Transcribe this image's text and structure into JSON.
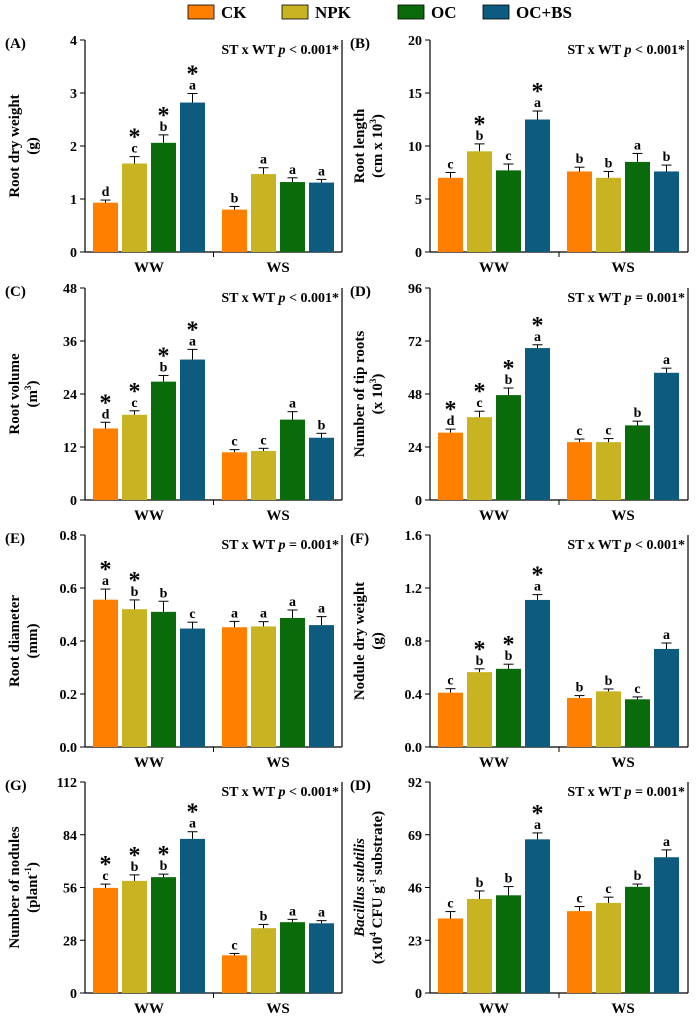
{
  "legend": {
    "items": [
      {
        "label": "CK",
        "color": "#ff8000"
      },
      {
        "label": "NPK",
        "color": "#c8b422"
      },
      {
        "label": "OC",
        "color": "#0a6b0a"
      },
      {
        "label": "OC+BS",
        "color": "#0d5c80"
      }
    ]
  },
  "chart_data": [
    {
      "panel": "(A)",
      "type": "bar",
      "stat": [
        "ST x WT ",
        "p",
        " < 0.001*"
      ],
      "ylabel": [
        "Root dry weight",
        "(g)"
      ],
      "yticks": [
        "0",
        "1",
        "2",
        "3",
        "4"
      ],
      "ylim": [
        0,
        4
      ],
      "categories": [
        "WW",
        "WS"
      ],
      "series": [
        {
          "name": "CK",
          "values": [
            0.93,
            0.8
          ],
          "errors": [
            0.05,
            0.06
          ],
          "letters": [
            "d",
            "b"
          ],
          "sig": [
            false,
            false
          ]
        },
        {
          "name": "NPK",
          "values": [
            1.67,
            1.47
          ],
          "errors": [
            0.13,
            0.12
          ],
          "letters": [
            "c",
            "a"
          ],
          "sig": [
            true,
            false
          ]
        },
        {
          "name": "OC",
          "values": [
            2.06,
            1.32
          ],
          "errors": [
            0.15,
            0.08
          ],
          "letters": [
            "b",
            "a"
          ],
          "sig": [
            true,
            false
          ]
        },
        {
          "name": "OC+BS",
          "values": [
            2.82,
            1.31
          ],
          "errors": [
            0.17,
            0.06
          ],
          "letters": [
            "a",
            "a"
          ],
          "sig": [
            true,
            false
          ]
        }
      ]
    },
    {
      "panel": "(B)",
      "type": "bar",
      "stat": [
        "ST x WT ",
        "p",
        " < 0.001*"
      ],
      "ylabel": [
        "Root length",
        "(cm x 10",
        "3",
        ")"
      ],
      "yticks": [
        "0",
        "5",
        "10",
        "15",
        "20"
      ],
      "ylim": [
        0,
        20
      ],
      "categories": [
        "WW",
        "WS"
      ],
      "series": [
        {
          "name": "CK",
          "values": [
            7.0,
            7.6
          ],
          "errors": [
            0.5,
            0.4
          ],
          "letters": [
            "c",
            "b"
          ],
          "sig": [
            false,
            false
          ]
        },
        {
          "name": "NPK",
          "values": [
            9.5,
            7.0
          ],
          "errors": [
            0.7,
            0.6
          ],
          "letters": [
            "b",
            "b"
          ],
          "sig": [
            true,
            false
          ]
        },
        {
          "name": "OC",
          "values": [
            7.7,
            8.5
          ],
          "errors": [
            0.6,
            0.8
          ],
          "letters": [
            "c",
            "a"
          ],
          "sig": [
            false,
            false
          ]
        },
        {
          "name": "OC+BS",
          "values": [
            12.5,
            7.6
          ],
          "errors": [
            0.8,
            0.6
          ],
          "letters": [
            "a",
            "b"
          ],
          "sig": [
            true,
            false
          ]
        }
      ]
    },
    {
      "panel": "(C)",
      "type": "bar",
      "stat": [
        "ST x WT ",
        "p",
        " < 0.001*"
      ],
      "ylabel": [
        "Root volume",
        "(m",
        "3",
        ")"
      ],
      "yticks": [
        "0",
        "12",
        "24",
        "36",
        "48"
      ],
      "ylim": [
        0,
        48
      ],
      "categories": [
        "WW",
        "WS"
      ],
      "series": [
        {
          "name": "CK",
          "values": [
            16.2,
            10.8
          ],
          "errors": [
            1.4,
            0.6
          ],
          "letters": [
            "d",
            "c"
          ],
          "sig": [
            true,
            false
          ]
        },
        {
          "name": "NPK",
          "values": [
            19.3,
            11.1
          ],
          "errors": [
            0.9,
            0.6
          ],
          "letters": [
            "c",
            "c"
          ],
          "sig": [
            true,
            false
          ]
        },
        {
          "name": "OC",
          "values": [
            26.8,
            18.2
          ],
          "errors": [
            1.4,
            1.8
          ],
          "letters": [
            "b",
            "a"
          ],
          "sig": [
            true,
            false
          ]
        },
        {
          "name": "OC+BS",
          "values": [
            31.8,
            14.1
          ],
          "errors": [
            2.3,
            1.0
          ],
          "letters": [
            "a",
            "b"
          ],
          "sig": [
            true,
            false
          ]
        }
      ]
    },
    {
      "panel": "(D)",
      "type": "bar",
      "stat": [
        "ST x WT ",
        "p",
        " = 0.001*"
      ],
      "ylabel": [
        "Number of tip roots",
        "(x 10",
        "3",
        ")"
      ],
      "yticks": [
        "0",
        "24",
        "48",
        "72",
        "96"
      ],
      "ylim": [
        0,
        96
      ],
      "categories": [
        "WW",
        "WS"
      ],
      "series": [
        {
          "name": "CK",
          "values": [
            30.5,
            26.2
          ],
          "errors": [
            1.6,
            1.4
          ],
          "letters": [
            "d",
            "c"
          ],
          "sig": [
            true,
            false
          ]
        },
        {
          "name": "NPK",
          "values": [
            37.5,
            26.2
          ],
          "errors": [
            2.7,
            1.6
          ],
          "letters": [
            "c",
            "c"
          ],
          "sig": [
            true,
            false
          ]
        },
        {
          "name": "OC",
          "values": [
            47.5,
            33.8
          ],
          "errors": [
            3.2,
            1.9
          ],
          "letters": [
            "b",
            "b"
          ],
          "sig": [
            true,
            false
          ]
        },
        {
          "name": "OC+BS",
          "values": [
            68.8,
            57.6
          ],
          "errors": [
            1.5,
            2.1
          ],
          "letters": [
            "a",
            "a"
          ],
          "sig": [
            true,
            false
          ]
        }
      ]
    },
    {
      "panel": "(E)",
      "type": "bar",
      "stat": [
        "ST x WT ",
        "p",
        " = 0.001*"
      ],
      "ylabel": [
        "Root diameter",
        "(mm)"
      ],
      "yticks": [
        "0.0",
        "0.2",
        "0.4",
        "0.6",
        "0.8"
      ],
      "ylim": [
        0,
        0.8
      ],
      "categories": [
        "WW",
        "WS"
      ],
      "series": [
        {
          "name": "CK",
          "values": [
            0.556,
            0.452
          ],
          "errors": [
            0.04,
            0.022
          ],
          "letters": [
            "a",
            "a"
          ],
          "sig": [
            true,
            false
          ]
        },
        {
          "name": "NPK",
          "values": [
            0.52,
            0.455
          ],
          "errors": [
            0.035,
            0.018
          ],
          "letters": [
            "b",
            "a"
          ],
          "sig": [
            true,
            false
          ]
        },
        {
          "name": "OC",
          "values": [
            0.51,
            0.487
          ],
          "errors": [
            0.04,
            0.03
          ],
          "letters": [
            "b",
            "a"
          ],
          "sig": [
            false,
            false
          ]
        },
        {
          "name": "OC+BS",
          "values": [
            0.447,
            0.46
          ],
          "errors": [
            0.024,
            0.032
          ],
          "letters": [
            "c",
            "a"
          ],
          "sig": [
            false,
            false
          ]
        }
      ]
    },
    {
      "panel": "(F)",
      "type": "bar",
      "stat": [
        "ST x WT ",
        "p",
        " < 0.001*"
      ],
      "ylabel": [
        "Nodule dry weight",
        "(g)"
      ],
      "yticks": [
        "0.0",
        "0.4",
        "0.8",
        "1.2",
        "1.6"
      ],
      "ylim": [
        0,
        1.6
      ],
      "categories": [
        "WW",
        "WS"
      ],
      "series": [
        {
          "name": "CK",
          "values": [
            0.41,
            0.37
          ],
          "errors": [
            0.03,
            0.018
          ],
          "letters": [
            "c",
            "b"
          ],
          "sig": [
            false,
            false
          ]
        },
        {
          "name": "NPK",
          "values": [
            0.565,
            0.42
          ],
          "errors": [
            0.025,
            0.018
          ],
          "letters": [
            "b",
            "b"
          ],
          "sig": [
            true,
            false
          ]
        },
        {
          "name": "OC",
          "values": [
            0.59,
            0.36
          ],
          "errors": [
            0.035,
            0.018
          ],
          "letters": [
            "b",
            "c"
          ],
          "sig": [
            true,
            false
          ]
        },
        {
          "name": "OC+BS",
          "values": [
            1.11,
            0.74
          ],
          "errors": [
            0.04,
            0.045
          ],
          "letters": [
            "a",
            "a"
          ],
          "sig": [
            true,
            false
          ]
        }
      ]
    },
    {
      "panel": "(G)",
      "type": "bar",
      "stat": [
        "ST x WT ",
        "p",
        " < 0.001*"
      ],
      "ylabel": [
        "Number of nodules",
        "(plant",
        "-1",
        ")"
      ],
      "yticks": [
        "0",
        "28",
        "56",
        "84",
        "112"
      ],
      "ylim": [
        0,
        112
      ],
      "categories": [
        "WW",
        "WS"
      ],
      "series": [
        {
          "name": "CK",
          "values": [
            55.8,
            20.0
          ],
          "errors": [
            2.0,
            1.0
          ],
          "letters": [
            "c",
            "c"
          ],
          "sig": [
            true,
            false
          ]
        },
        {
          "name": "NPK",
          "values": [
            59.5,
            34.4
          ],
          "errors": [
            3.2,
            2.0
          ],
          "letters": [
            "b",
            "b"
          ],
          "sig": [
            true,
            false
          ]
        },
        {
          "name": "OC",
          "values": [
            61.5,
            37.6
          ],
          "errors": [
            1.6,
            1.5
          ],
          "letters": [
            "b",
            "a"
          ],
          "sig": [
            true,
            false
          ]
        },
        {
          "name": "OC+BS",
          "values": [
            81.8,
            37.0
          ],
          "errors": [
            3.8,
            1.4
          ],
          "letters": [
            "a",
            "a"
          ],
          "sig": [
            true,
            false
          ]
        }
      ]
    },
    {
      "panel": "(D)",
      "type": "bar",
      "stat": [
        "ST x WT ",
        "p",
        " = 0.001*"
      ],
      "ylabel": [
        "Bacillus subtilis",
        "(x10",
        "4",
        " CFU g",
        "-1",
        " substrate)"
      ],
      "yticks": [
        "0",
        "23",
        "46",
        "69",
        "92"
      ],
      "ylim": [
        0,
        92
      ],
      "categories": [
        "WW",
        "WS"
      ],
      "series": [
        {
          "name": "CK",
          "values": [
            32.5,
            35.7
          ],
          "errors": [
            3.0,
            2.0
          ],
          "letters": [
            "c",
            "c"
          ],
          "sig": [
            false,
            false
          ]
        },
        {
          "name": "NPK",
          "values": [
            41.0,
            39.3
          ],
          "errors": [
            3.5,
            2.5
          ],
          "letters": [
            "b",
            "c"
          ],
          "sig": [
            false,
            false
          ]
        },
        {
          "name": "OC",
          "values": [
            42.6,
            46.3
          ],
          "errors": [
            3.8,
            1.2
          ],
          "letters": [
            "b",
            "b"
          ],
          "sig": [
            false,
            false
          ]
        },
        {
          "name": "OC+BS",
          "values": [
            67.0,
            59.2
          ],
          "errors": [
            2.8,
            3.2
          ],
          "letters": [
            "a",
            "a"
          ],
          "sig": [
            true,
            false
          ]
        }
      ]
    }
  ]
}
